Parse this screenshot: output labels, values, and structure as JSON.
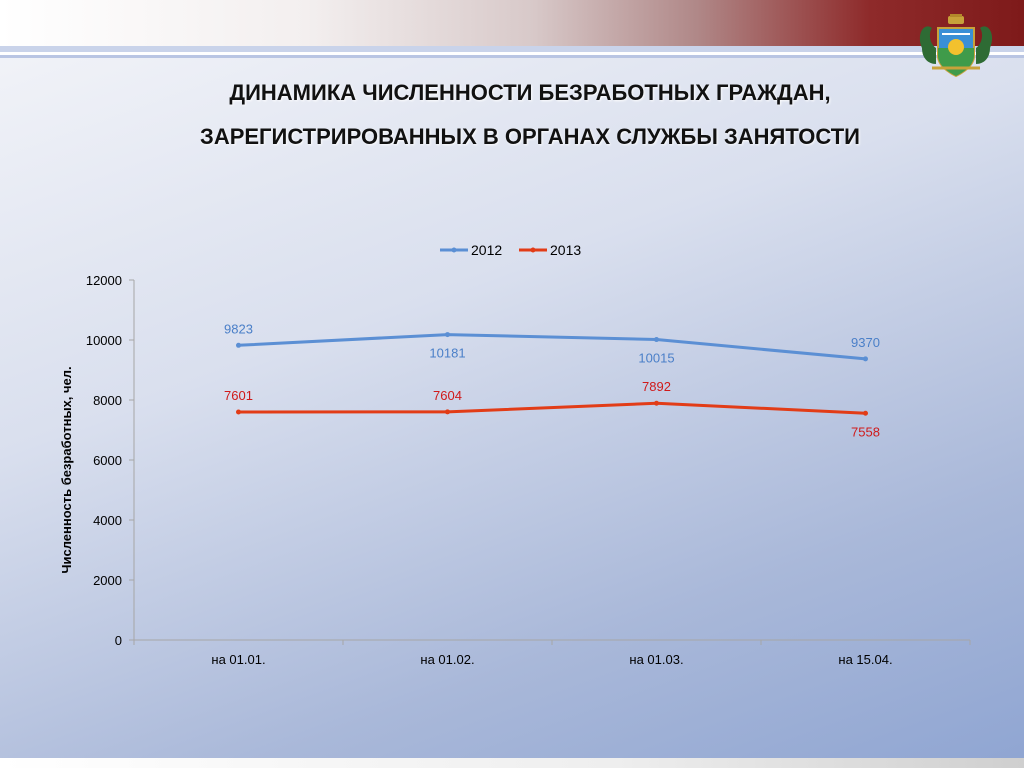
{
  "slide": {
    "title_line1": "ДИНАМИКА ЧИСЛЕННОСТИ БЕЗРАБОТНЫХ ГРАЖДАН,",
    "title_line2": "ЗАРЕГИСТРИРОВАННЫХ В ОРГАНАХ СЛУЖБЫ ЗАНЯТОСТИ",
    "emblem_icon": "coat-of-arms-icon"
  },
  "colors": {
    "series_2012": "#5b8fd4",
    "series_2013": "#e23c17",
    "label_2012": "#4a7fc8",
    "label_2013": "#d01a1a",
    "axis": "#a6a6a6"
  },
  "chart_data": {
    "type": "line",
    "title": "",
    "xlabel": "",
    "ylabel": "Численность безработных, чел.",
    "categories": [
      "на 01.01.",
      "на 01.02.",
      "на 01.03.",
      "на 15.04."
    ],
    "ylim": [
      0,
      12000
    ],
    "yticks": [
      0,
      2000,
      4000,
      6000,
      8000,
      10000,
      12000
    ],
    "grid": false,
    "legend_position": "top",
    "series": [
      {
        "name": "2012",
        "values": [
          9823,
          10181,
          10015,
          9370
        ],
        "label_placement": [
          "above",
          "below",
          "below",
          "above"
        ]
      },
      {
        "name": "2013",
        "values": [
          7601,
          7604,
          7892,
          7558
        ],
        "label_placement": [
          "above",
          "above",
          "above",
          "below"
        ]
      }
    ]
  }
}
